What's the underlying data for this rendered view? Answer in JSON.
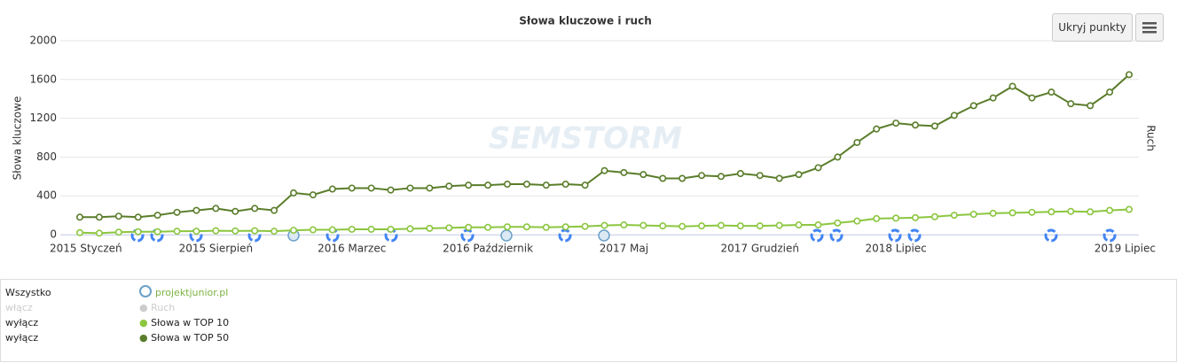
{
  "chart_data": {
    "type": "line",
    "title": "Słowa kluczowe i ruch",
    "y_label": "Słowa kluczowe",
    "y2_label": "Ruch",
    "watermark": "SEMSTORM",
    "categories": [
      "2015 Styczeń",
      null,
      null,
      null,
      null,
      null,
      null,
      "2015 Sierpień",
      null,
      null,
      null,
      null,
      null,
      null,
      "2016 Marzec",
      null,
      null,
      null,
      null,
      null,
      null,
      "2016 Październik",
      null,
      null,
      null,
      null,
      null,
      null,
      "2017 Maj",
      null,
      null,
      null,
      null,
      null,
      null,
      "2017 Grudzień",
      null,
      null,
      null,
      null,
      null,
      null,
      "2018 Lipiec",
      null,
      null,
      null,
      null,
      null,
      null,
      null,
      null,
      null,
      null,
      null,
      "2019 Lipiec"
    ],
    "ylim": [
      0,
      2000
    ],
    "yticks": [
      0,
      400,
      800,
      1200,
      1600,
      2000
    ],
    "grid": true,
    "series": [
      {
        "name": "Słowa w TOP 10",
        "color": "#8cc63f",
        "values": [
          20,
          15,
          25,
          30,
          30,
          35,
          35,
          40,
          38,
          40,
          35,
          45,
          50,
          50,
          55,
          55,
          55,
          60,
          65,
          70,
          75,
          75,
          80,
          80,
          75,
          80,
          85,
          95,
          100,
          95,
          90,
          85,
          90,
          95,
          90,
          90,
          95,
          100,
          100,
          120,
          140,
          165,
          170,
          175,
          185,
          200,
          210,
          220,
          225,
          230,
          235,
          240,
          235,
          250,
          260
        ]
      },
      {
        "name": "Słowa w TOP 50",
        "color": "#5a7d2a",
        "values": [
          180,
          180,
          190,
          180,
          200,
          230,
          250,
          270,
          240,
          270,
          250,
          430,
          410,
          470,
          480,
          480,
          460,
          480,
          480,
          500,
          510,
          510,
          520,
          520,
          510,
          520,
          510,
          660,
          640,
          620,
          580,
          580,
          610,
          600,
          630,
          610,
          580,
          620,
          690,
          800,
          950,
          1090,
          1150,
          1130,
          1120,
          1230,
          1330,
          1410,
          1530,
          1410,
          1470,
          1350,
          1330,
          1470,
          1650
        ]
      }
    ]
  },
  "ui": {
    "button": "Ukryj punkty",
    "panel": {
      "all": "Wszystko",
      "domain": "projektjunior.pl",
      "hidden_toggle": "włącz",
      "hidden_name": "Ruch",
      "toggles": [
        "wyłącz",
        "wyłącz"
      ]
    }
  }
}
